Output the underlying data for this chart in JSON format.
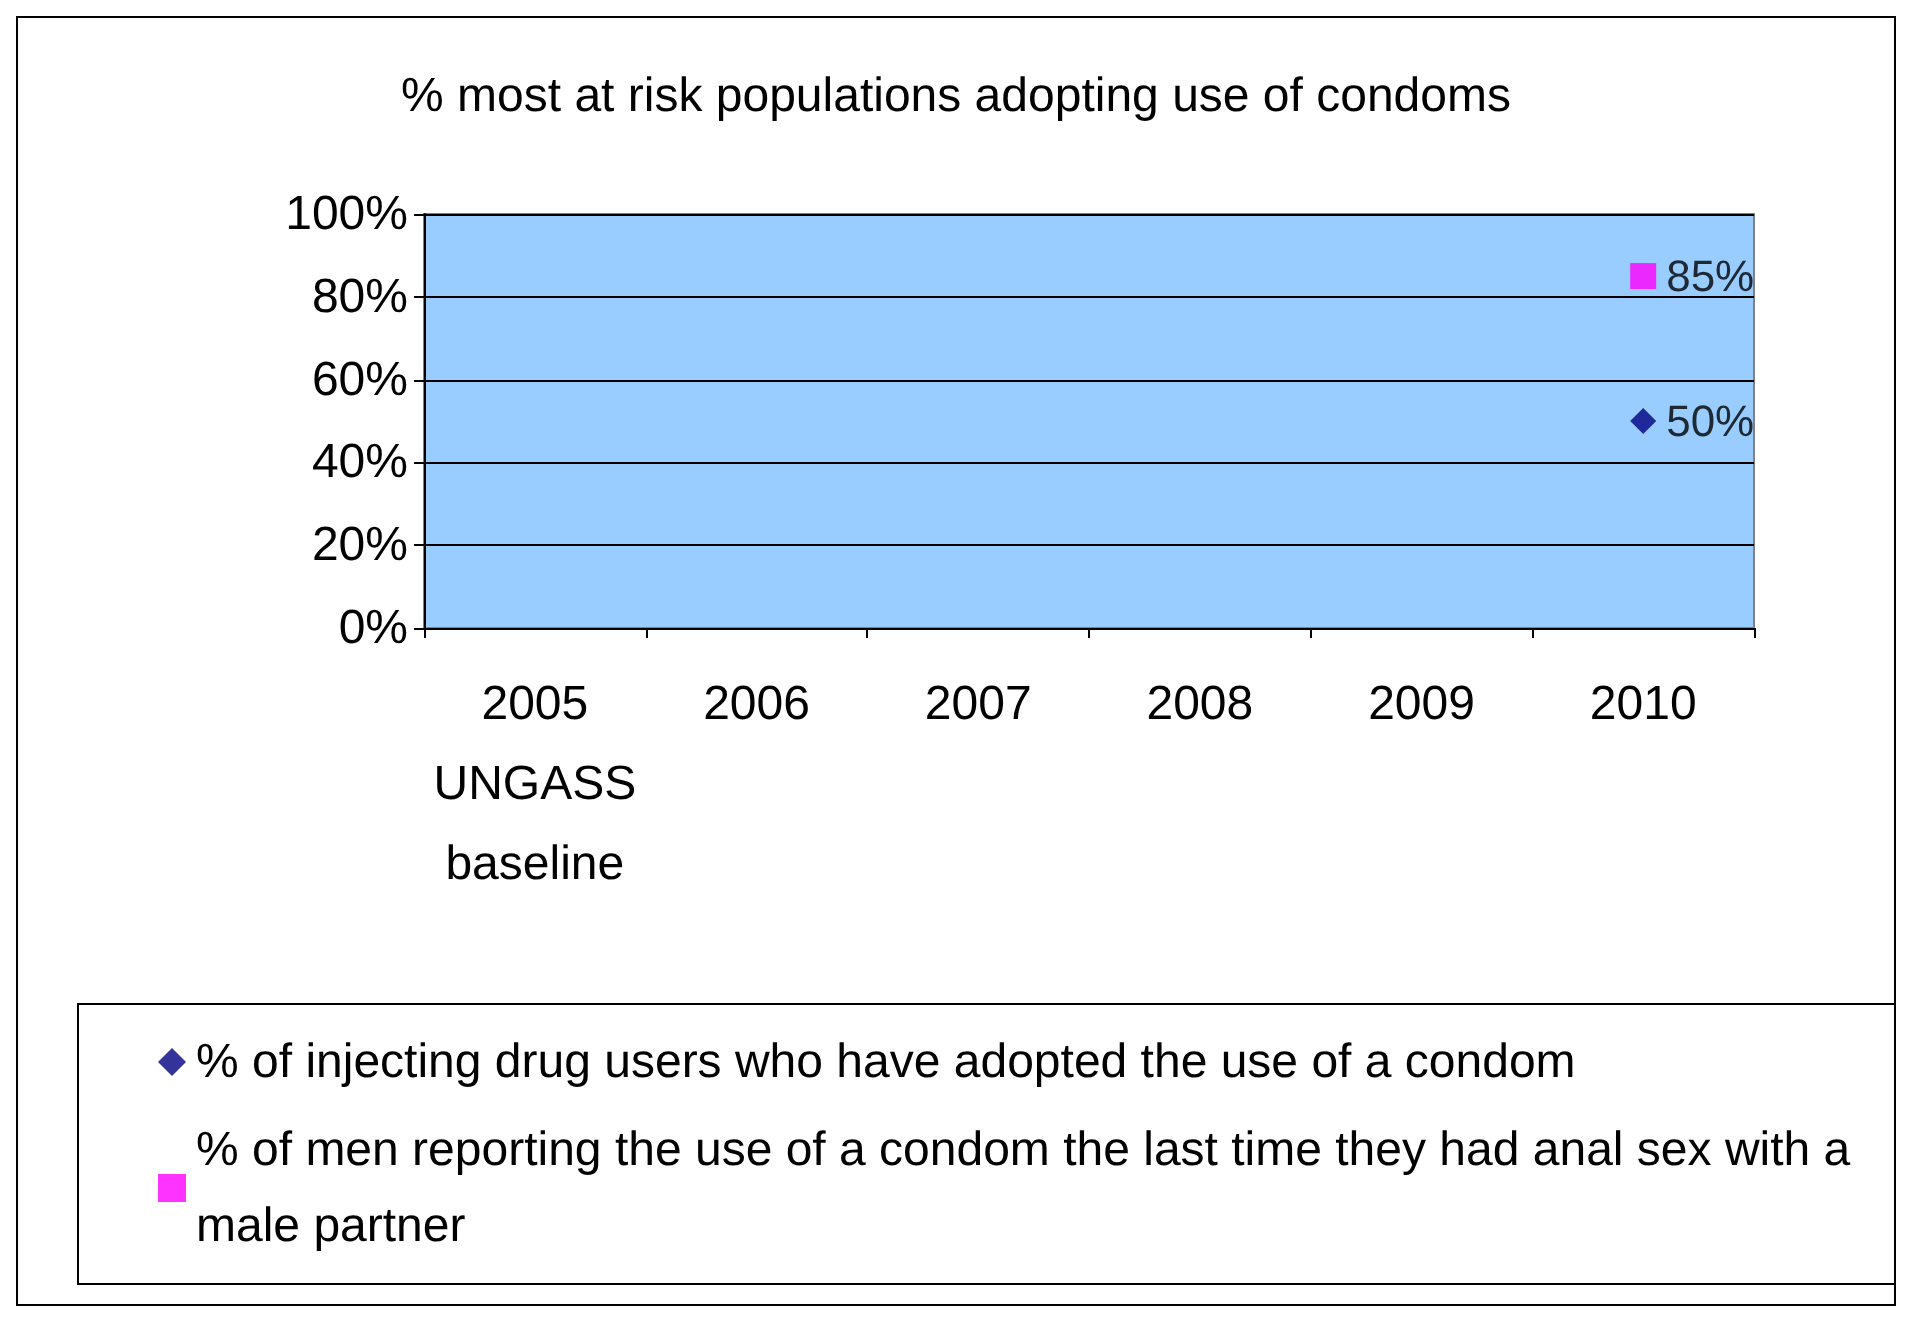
{
  "chart_data": {
    "type": "scatter",
    "title": "% most at risk populations adopting use of condoms",
    "categories": [
      "2005\nUNGASS\nbaseline",
      "2006",
      "2007",
      "2008",
      "2009",
      "2010"
    ],
    "series": [
      {
        "name": "% of injecting drug users who have adopted the use of a condom",
        "color": "#000080",
        "marker": "diamond",
        "values": [
          null,
          null,
          null,
          null,
          null,
          50
        ],
        "value_labels": [
          null,
          null,
          null,
          null,
          null,
          "50%"
        ]
      },
      {
        "name": "% of men reporting the use of a condom the last time they had anal sex with a male partner",
        "color": "#ff00ff",
        "marker": "square",
        "values": [
          null,
          null,
          null,
          null,
          null,
          85
        ],
        "value_labels": [
          null,
          null,
          null,
          null,
          null,
          "85%"
        ]
      }
    ],
    "ylim": [
      0,
      100
    ],
    "yticks": [
      {
        "value": 0,
        "label": "0%"
      },
      {
        "value": 20,
        "label": "20%"
      },
      {
        "value": 40,
        "label": "40%"
      },
      {
        "value": 60,
        "label": "60%"
      },
      {
        "value": 80,
        "label": "80%"
      },
      {
        "value": 100,
        "label": "100%"
      }
    ],
    "grid": "y",
    "legend": "bottom"
  }
}
